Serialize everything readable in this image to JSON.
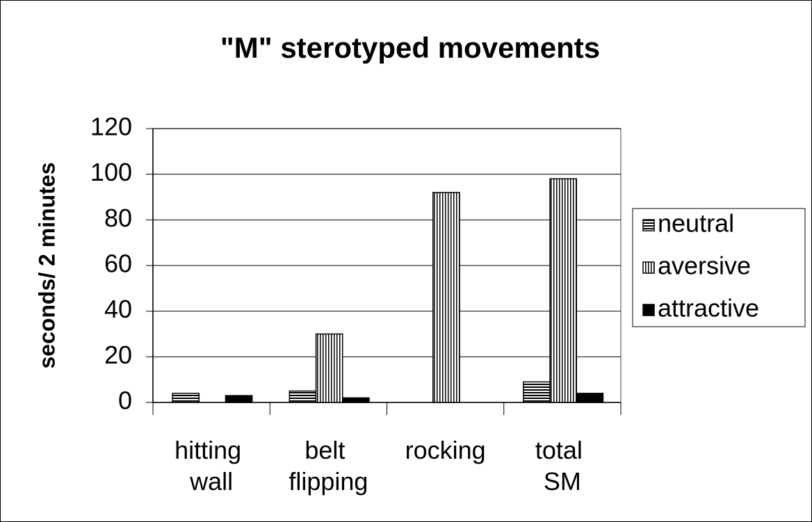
{
  "chart_data": {
    "type": "bar",
    "title": "\"M\" sterotyped movements",
    "y_label": "seconds/ 2 minutes",
    "categories": [
      "hitting wall",
      "belt flipping",
      "rocking",
      "total SM"
    ],
    "series": [
      {
        "name": "neutral",
        "color": "#000000",
        "pattern": "horizontal",
        "values": [
          4,
          5,
          0,
          9
        ]
      },
      {
        "name": "aversive",
        "color": "#000000",
        "pattern": "vertical",
        "values": [
          0,
          30,
          92,
          98
        ]
      },
      {
        "name": "attractive",
        "color": "#000000",
        "pattern": "solid",
        "values": [
          3,
          2,
          0,
          4
        ]
      }
    ],
    "ylim": [
      0,
      120
    ],
    "yticks": [
      0,
      20,
      40,
      60,
      80,
      100,
      120
    ],
    "grid": true,
    "legend": "right"
  }
}
